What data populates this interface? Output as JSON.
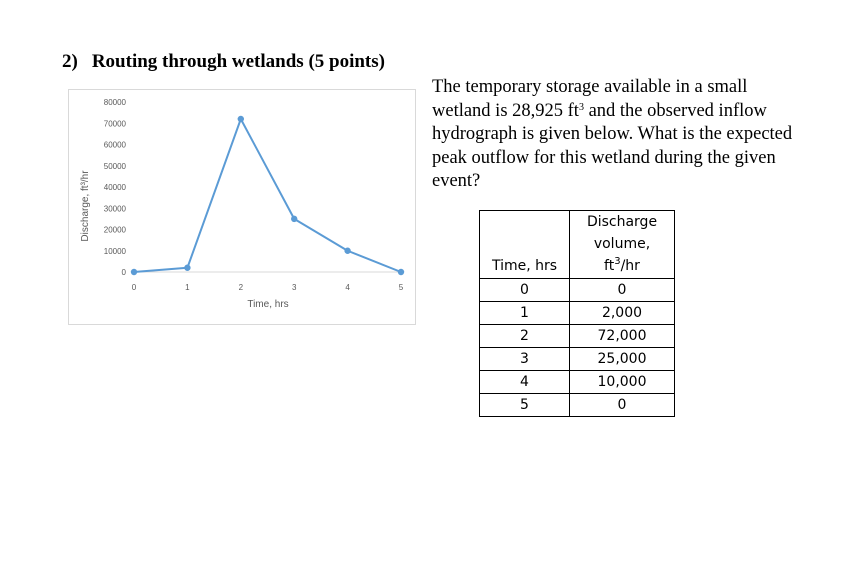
{
  "heading": {
    "number": "2)",
    "title": "Routing through wetlands (5 points)"
  },
  "question": {
    "text_before": "The temporary storage available in a small wetland is 28,925 ft",
    "sup": "3",
    "text_after": " and the observed inflow hydrograph is given below. What is the expected peak outflow for this wetland during the given event?"
  },
  "table": {
    "header_time": "Time, hrs",
    "header_q_line1": "Discharge",
    "header_q_line2": "volume,",
    "header_q_unit_base": "ft",
    "header_q_unit_sup": "3",
    "header_q_unit_rest": "/hr",
    "rows": [
      {
        "time": "0",
        "q": "0"
      },
      {
        "time": "1",
        "q": "2,000"
      },
      {
        "time": "2",
        "q": "72,000"
      },
      {
        "time": "3",
        "q": "25,000"
      },
      {
        "time": "4",
        "q": "10,000"
      },
      {
        "time": "5",
        "q": "0"
      }
    ]
  },
  "colors": {
    "series": "#5b9bd5",
    "axis": "#d9d9d9",
    "tick_text": "#595959"
  },
  "chart_data": {
    "type": "line",
    "title": "",
    "xlabel": "Time, hrs",
    "ylabel": "Discharge, ft³/hr",
    "x": [
      0,
      1,
      2,
      3,
      4,
      5
    ],
    "series": [
      {
        "values": [
          0,
          2000,
          72000,
          25000,
          10000,
          0
        ]
      }
    ],
    "xticks": [
      "0",
      "1",
      "2",
      "3",
      "4",
      "5"
    ],
    "yticks": [
      "0",
      "10000",
      "20000",
      "30000",
      "40000",
      "50000",
      "60000",
      "70000",
      "80000"
    ],
    "xlim": [
      0,
      5
    ],
    "ylim": [
      0,
      80000
    ],
    "grid": false,
    "legend": "none",
    "marker": "circle"
  }
}
